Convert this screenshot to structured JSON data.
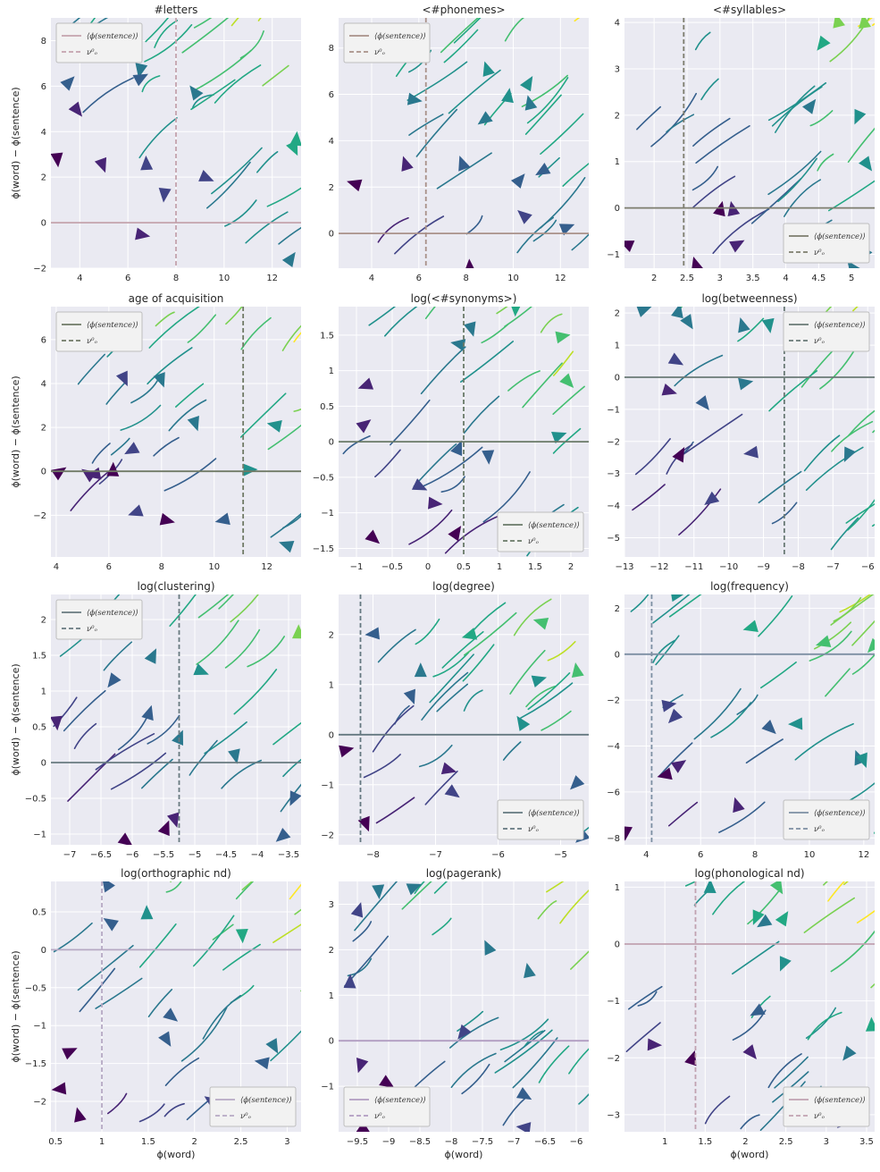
{
  "chart_data": [
    {
      "type": "streamplot",
      "title": "#letters",
      "xlim": [
        2.8,
        13.2
      ],
      "ylim": [
        -2,
        9
      ],
      "xticks": [
        4,
        6,
        8,
        10,
        12
      ],
      "yticks": [
        -2,
        0,
        2,
        4,
        6,
        8
      ],
      "ylabel": "ϕ(word) − ϕ(sentence)",
      "xlabel": "",
      "hline": 0,
      "vline": 8.0,
      "ref_color": "#c4a3ad",
      "legend": {
        "loc": "upper left",
        "entries": [
          "⟨ϕ(sentence)⟩",
          "ν⁰ₒ"
        ]
      }
    },
    {
      "type": "streamplot",
      "title": "<#phonemes>",
      "xlim": [
        2.6,
        13.2
      ],
      "ylim": [
        -1.5,
        9.3
      ],
      "xticks": [
        4,
        6,
        8,
        10,
        12
      ],
      "yticks": [
        0,
        2,
        4,
        6,
        8
      ],
      "ylabel": "",
      "xlabel": "",
      "hline": 0,
      "vline": 6.3,
      "ref_color": "#a99189",
      "legend": {
        "loc": "upper left",
        "entries": [
          "⟨ϕ(sentence)⟩",
          "ν⁰ₒ"
        ]
      }
    },
    {
      "type": "streamplot",
      "title": "<#syllables>",
      "xlim": [
        1.55,
        5.35
      ],
      "ylim": [
        -1.3,
        4.1
      ],
      "xticks": [
        2.0,
        2.5,
        3.0,
        3.5,
        4.0,
        4.5,
        5.0
      ],
      "yticks": [
        -1,
        0,
        1,
        2,
        3,
        4
      ],
      "ylabel": "",
      "xlabel": "",
      "hline": 0,
      "vline": 2.45,
      "ref_color": "#7d7d6e",
      "legend": {
        "loc": "lower right",
        "entries": [
          "⟨ϕ(sentence)⟩",
          "ν⁰ₒ"
        ]
      }
    },
    {
      "type": "streamplot",
      "title": "age of acquisition",
      "xlim": [
        3.8,
        13.3
      ],
      "ylim": [
        -3.9,
        7.5
      ],
      "xticks": [
        4,
        6,
        8,
        10,
        12
      ],
      "yticks": [
        -2,
        0,
        2,
        4,
        6
      ],
      "ylabel": "ϕ(word) − ϕ(sentence)",
      "xlabel": "",
      "hline": 0,
      "vline": 11.1,
      "ref_color": "#707a66",
      "legend": {
        "loc": "upper left",
        "entries": [
          "⟨ϕ(sentence)⟩",
          "ν⁰ₒ"
        ]
      }
    },
    {
      "type": "streamplot",
      "title": "log(<#synonyms>)",
      "xlim": [
        -1.25,
        2.25
      ],
      "ylim": [
        -1.62,
        1.9
      ],
      "xticks": [
        -1.0,
        -0.5,
        0.0,
        0.5,
        1.0,
        1.5,
        2.0
      ],
      "yticks": [
        -1.5,
        -1.0,
        -0.5,
        0.0,
        0.5,
        1.0,
        1.5
      ],
      "ylabel": "",
      "xlabel": "",
      "hline": 0,
      "vline": 0.5,
      "ref_color": "#6a7a68",
      "legend": {
        "loc": "lower right",
        "entries": [
          "⟨ϕ(sentence)⟩",
          "ν⁰ₒ"
        ]
      }
    },
    {
      "type": "streamplot",
      "title": "log(betweenness)",
      "xlim": [
        -13.0,
        -5.8
      ],
      "ylim": [
        -5.6,
        2.2
      ],
      "xticks": [
        -13,
        -12,
        -11,
        -10,
        -9,
        -8,
        -7,
        -6
      ],
      "yticks": [
        -5,
        -4,
        -3,
        -2,
        -1,
        0,
        1,
        2
      ],
      "ylabel": "",
      "xlabel": "",
      "hline": 0,
      "vline": -8.4,
      "ref_color": "#6a7a76",
      "legend": {
        "loc": "upper right",
        "entries": [
          "⟨ϕ(sentence)⟩",
          "ν⁰ₒ"
        ]
      }
    },
    {
      "type": "streamplot",
      "title": "log(clustering)",
      "xlim": [
        -7.3,
        -3.3
      ],
      "ylim": [
        -1.15,
        2.35
      ],
      "xticks": [
        -7.0,
        -6.5,
        -6.0,
        -5.5,
        -5.0,
        -4.5,
        -4.0,
        -3.5
      ],
      "yticks": [
        -1.0,
        -0.5,
        0.0,
        0.5,
        1.0,
        1.5,
        2.0
      ],
      "ylabel": "ϕ(word) − ϕ(sentence)",
      "xlabel": "",
      "hline": 0,
      "vline": -5.25,
      "ref_color": "#687a80",
      "legend": {
        "loc": "upper left",
        "entries": [
          "⟨ϕ(sentence)⟩",
          "ν⁰ₒ"
        ]
      }
    },
    {
      "type": "streamplot",
      "title": "log(degree)",
      "xlim": [
        -8.55,
        -4.55
      ],
      "ylim": [
        -2.2,
        2.8
      ],
      "xticks": [
        -8,
        -7,
        -6,
        -5
      ],
      "yticks": [
        -2,
        -1,
        0,
        1,
        2
      ],
      "ylabel": "",
      "xlabel": "",
      "hline": 0,
      "vline": -8.2,
      "ref_color": "#647880",
      "legend": {
        "loc": "lower right",
        "entries": [
          "⟨ϕ(sentence)⟩",
          "ν⁰ₒ"
        ]
      }
    },
    {
      "type": "streamplot",
      "title": "log(frequency)",
      "xlim": [
        3.2,
        12.4
      ],
      "ylim": [
        -8.3,
        2.6
      ],
      "xticks": [
        4,
        6,
        8,
        10,
        12
      ],
      "yticks": [
        -8,
        -6,
        -4,
        -2,
        0,
        2
      ],
      "ylabel": "",
      "xlabel": "",
      "hline": 0,
      "vline": 4.2,
      "ref_color": "#7d8fa3",
      "legend": {
        "loc": "lower right",
        "entries": [
          "⟨ϕ(sentence)⟩",
          "ν⁰ₒ"
        ]
      }
    },
    {
      "type": "streamplot",
      "title": "log(orthographic nd)",
      "xlim": [
        0.45,
        3.15
      ],
      "ylim": [
        -2.4,
        0.9
      ],
      "xticks": [
        0.5,
        1.0,
        1.5,
        2.0,
        2.5,
        3.0
      ],
      "yticks": [
        -2.0,
        -1.5,
        -1.0,
        -0.5,
        0.0,
        0.5
      ],
      "ylabel": "ϕ(word) − ϕ(sentence)",
      "xlabel": "ϕ(word)",
      "hline": 0,
      "vline": 1.0,
      "ref_color": "#b6a9c4",
      "legend": {
        "loc": "lower right",
        "entries": [
          "⟨ϕ(sentence)⟩",
          "ν⁰ₒ"
        ]
      }
    },
    {
      "type": "streamplot",
      "title": "log(pagerank)",
      "xlim": [
        -9.8,
        -5.8
      ],
      "ylim": [
        -2.0,
        3.5
      ],
      "xticks": [
        -9.5,
        -9.0,
        -8.5,
        -8.0,
        -7.5,
        -7.0,
        -6.5,
        -6.0
      ],
      "yticks": [
        -1,
        0,
        1,
        2,
        3
      ],
      "ylabel": "",
      "xlabel": "ϕ(word)",
      "hline": 0,
      "vline": null,
      "ref_color": "#b19cc1",
      "legend": {
        "loc": "lower left",
        "entries": [
          "⟨ϕ(sentence)⟩",
          "ν⁰ₒ"
        ]
      }
    },
    {
      "type": "streamplot",
      "title": "log(phonological nd)",
      "xlim": [
        0.5,
        3.6
      ],
      "ylim": [
        -3.3,
        1.1
      ],
      "xticks": [
        1.0,
        1.5,
        2.0,
        2.5,
        3.0,
        3.5
      ],
      "yticks": [
        -3,
        -2,
        -1,
        0,
        1
      ],
      "ylabel": "",
      "xlabel": "ϕ(word)",
      "hline": 0,
      "vline": 1.38,
      "ref_color": "#c1a2b1",
      "legend": {
        "loc": "lower right",
        "entries": [
          "⟨ϕ(sentence)⟩",
          "ν⁰ₒ"
        ]
      }
    }
  ]
}
